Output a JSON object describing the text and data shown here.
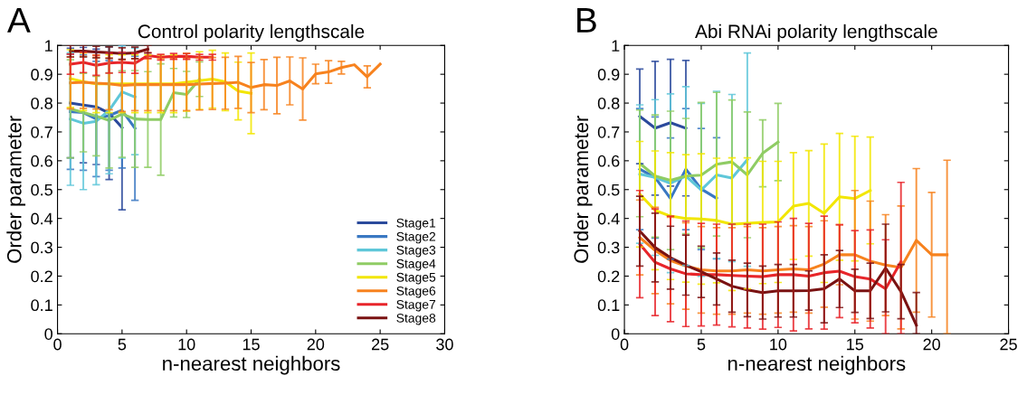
{
  "chart_data": [
    {
      "type": "line",
      "title": "Control polarity lengthscale",
      "xlabel": "n-nearest neighbors",
      "ylabel": "Order parameter",
      "annotations": [
        "A"
      ],
      "xlim": [
        0,
        30
      ],
      "xticks": [
        0,
        5,
        10,
        15,
        20,
        25,
        30
      ],
      "ylim": [
        0,
        1
      ],
      "yticks": [
        0,
        0.1,
        0.2,
        0.3,
        0.4,
        0.5,
        0.6,
        0.7,
        0.8,
        0.9,
        1
      ],
      "grid": false,
      "legend": "bottom right",
      "marker": "none",
      "line_style": "solid",
      "series": [
        {
          "name": "Stage1",
          "color": "#2b4a9c",
          "x": [
            1,
            2,
            3,
            4,
            5
          ],
          "values": [
            0.8,
            0.793,
            0.787,
            0.765,
            0.715
          ],
          "errors": [
            0.19,
            0.2,
            0.2,
            0.23,
            0.285
          ]
        },
        {
          "name": "Stage2",
          "color": "#3a78c2",
          "x": [
            1,
            2,
            3,
            4,
            5,
            6
          ],
          "values": [
            0.77,
            0.767,
            0.745,
            0.757,
            0.775,
            0.713
          ],
          "errors": [
            0.2,
            0.2,
            0.2,
            0.19,
            0.2,
            0.25
          ]
        },
        {
          "name": "Stage3",
          "color": "#5fc7d9",
          "x": [
            1,
            2,
            3,
            4,
            5,
            6
          ],
          "values": [
            0.745,
            0.73,
            0.737,
            0.775,
            0.839,
            0.821
          ],
          "errors": [
            0.23,
            0.23,
            0.22,
            0.22,
            [
              0.609,
              0.999
            ],
            [
              0.621,
              0.991
            ]
          ]
        },
        {
          "name": "Stage4",
          "color": "#8fcc64",
          "x": [
            1,
            2,
            3,
            4,
            5,
            6,
            7,
            8,
            9,
            10,
            11
          ],
          "values": [
            0.78,
            0.767,
            0.755,
            0.74,
            0.762,
            0.745,
            0.743,
            0.743,
            0.836,
            0.83,
            0.883
          ],
          "errors": [
            0.17,
            0.136,
            0.138,
            0.165,
            0.15,
            0.168,
            0.166,
            0.193,
            0.084,
            0.08,
            0.06
          ]
        },
        {
          "name": "Stage5",
          "color": "#f2e600",
          "x": [
            1,
            2,
            3,
            4,
            5,
            6,
            7,
            8,
            9,
            10,
            11,
            12,
            13,
            14,
            15
          ],
          "values": [
            0.885,
            0.874,
            0.867,
            0.867,
            0.867,
            0.867,
            0.867,
            0.867,
            0.867,
            0.872,
            0.878,
            0.883,
            0.874,
            0.842,
            0.834
          ],
          "errors": [
            0.1,
            0.1,
            0.1,
            0.1,
            0.1,
            0.1,
            0.1,
            0.1,
            0.1,
            0.1,
            0.1,
            0.1,
            0.1,
            0.1,
            0.14
          ]
        },
        {
          "name": "Stage6",
          "color": "#f7821e",
          "x": [
            1,
            2,
            3,
            4,
            5,
            6,
            7,
            8,
            9,
            10,
            11,
            12,
            13,
            14,
            15,
            16,
            17,
            18,
            19,
            20,
            21,
            22,
            23,
            24,
            25
          ],
          "values": [
            0.87,
            0.872,
            0.869,
            0.867,
            0.861,
            0.864,
            0.864,
            0.864,
            0.864,
            0.864,
            0.866,
            0.868,
            0.869,
            0.872,
            0.854,
            0.864,
            0.861,
            0.877,
            0.849,
            0.901,
            0.908,
            0.923,
            0.933,
            0.891,
            0.935
          ],
          "errors": [
            0.09,
            0.09,
            0.09,
            0.09,
            0.09,
            0.09,
            0.09,
            0.09,
            0.09,
            0.09,
            0.09,
            0.09,
            0.09,
            0.09,
            0.087,
            0.087,
            0.098,
            0.083,
            0.108,
            0.034,
            0.039,
            0.022,
            null,
            0.038,
            null
          ]
        },
        {
          "name": "Stage7",
          "color": "#e8252a",
          "x": [
            1,
            2,
            3,
            4,
            5,
            6,
            7,
            8,
            9,
            10,
            11,
            12
          ],
          "values": [
            0.935,
            0.941,
            0.931,
            0.939,
            0.941,
            0.938,
            0.965,
            0.959,
            0.962,
            0.962,
            0.959,
            0.959
          ],
          "errors": [
            0.035,
            0.035,
            0.035,
            0.035,
            0.035,
            0.035,
            0.01,
            0.01,
            0.01,
            0.01,
            0.01,
            0.01
          ]
        },
        {
          "name": "Stage8",
          "color": "#7a1212",
          "x": [
            1,
            2,
            3,
            4,
            5,
            6,
            7
          ],
          "values": [
            0.98,
            0.98,
            0.977,
            0.975,
            0.972,
            0.974,
            0.987
          ],
          "errors": [
            0.02,
            0.02,
            0.02,
            0.02,
            0.02,
            0.02,
            0.013
          ]
        }
      ]
    },
    {
      "type": "line",
      "title": "Abi RNAi polarity lengthscale",
      "xlabel": "n-nearest neighbors",
      "ylabel": "Order parameter",
      "annotations": [
        "B"
      ],
      "xlim": [
        0,
        25
      ],
      "xticks": [
        0,
        5,
        10,
        15,
        20,
        25
      ],
      "ylim": [
        0,
        1
      ],
      "yticks": [
        0,
        0.1,
        0.2,
        0.3,
        0.4,
        0.5,
        0.6,
        0.7,
        0.8,
        0.9,
        1
      ],
      "grid": false,
      "marker": "none",
      "line_style": "solid",
      "series": [
        {
          "color": "#2b4a9c",
          "x": [
            1,
            2,
            3,
            4
          ],
          "values": [
            0.754,
            0.713,
            0.732,
            0.713
          ],
          "errors": [
            0.164,
            0.232,
            0.22,
            0.235
          ]
        },
        {
          "color": "#3a78c2",
          "x": [
            1,
            2,
            3,
            4,
            5,
            6
          ],
          "values": [
            0.571,
            0.542,
            0.469,
            0.571,
            0.502,
            0.47
          ],
          "errors": [
            0.21,
            0.21,
            0.21,
            0.21,
            0.21,
            0.21
          ]
        },
        {
          "color": "#5fc7d9",
          "x": [
            1,
            2,
            3,
            4,
            5,
            6,
            7,
            8
          ],
          "values": [
            0.554,
            0.542,
            0.522,
            0.547,
            0.499,
            0.551,
            0.54,
            0.604
          ],
          "errors": [
            0.24,
            0.27,
            0.31,
            0.31,
            0.3,
            0.29,
            0.29,
            0.37
          ]
        },
        {
          "color": "#8fcc64",
          "x": [
            1,
            2,
            3,
            4,
            5,
            6,
            7,
            8,
            9,
            10
          ],
          "values": [
            0.591,
            0.547,
            0.532,
            0.547,
            0.55,
            0.588,
            0.596,
            0.551,
            0.626,
            0.665
          ],
          "errors": [
            0.185,
            0.212,
            0.24,
            0.2,
            0.252,
            0.249,
            0.215,
            0.218,
            0.116,
            0.134
          ]
        },
        {
          "color": "#f2e600",
          "x": [
            1,
            2,
            3,
            4,
            5,
            6,
            7,
            8,
            9,
            10,
            11,
            12,
            13,
            14,
            15,
            16
          ],
          "values": [
            0.484,
            0.428,
            0.408,
            0.4,
            0.398,
            0.393,
            0.38,
            0.383,
            0.386,
            0.388,
            0.443,
            0.452,
            0.418,
            0.475,
            0.469,
            0.497
          ],
          "errors": [
            0.183,
            0.206,
            0.22,
            0.221,
            0.226,
            0.216,
            0.23,
            0.227,
            0.212,
            0.21,
            0.185,
            0.183,
            0.24,
            0.22,
            0.216,
            0.185
          ]
        },
        {
          "color": "#f7821e",
          "x": [
            1,
            2,
            3,
            4,
            5,
            6,
            7,
            8,
            9,
            10,
            11,
            12,
            13,
            14,
            15,
            16,
            17,
            18,
            19,
            20,
            21
          ],
          "values": [
            0.334,
            0.289,
            0.254,
            0.235,
            0.222,
            0.218,
            0.218,
            0.222,
            0.218,
            0.222,
            0.225,
            0.222,
            0.242,
            0.274,
            0.274,
            0.252,
            0.238,
            0.23,
            0.324,
            0.274,
            0.274
          ],
          "errors": [
            0.13,
            0.15,
            0.15,
            0.15,
            0.15,
            0.15,
            0.15,
            0.15,
            0.15,
            0.15,
            0.15,
            0.15,
            0.15,
            0.104,
            0.223,
            0.208,
            0.175,
            0.213,
            0.249,
            0.216,
            [
              0,
              0.602
            ]
          ]
        },
        {
          "color": "#e8252a",
          "x": [
            1,
            2,
            3,
            4,
            5,
            6,
            7,
            8,
            9,
            10,
            11,
            12,
            13,
            14,
            15,
            16,
            17,
            18
          ],
          "values": [
            0.311,
            0.248,
            0.225,
            0.208,
            0.205,
            0.205,
            0.202,
            0.2,
            0.198,
            0.205,
            0.205,
            0.2,
            0.212,
            0.217,
            0.198,
            0.19,
            0.156,
            0.25
          ],
          "errors": [
            0.186,
            0.185,
            0.183,
            0.183,
            0.178,
            0.175,
            0.178,
            0.18,
            0.182,
            0.183,
            0.195,
            0.183,
            0.196,
            0.161,
            0.16,
            0.17,
            [
              0,
              0.326
            ],
            [
              0,
              0.525
            ]
          ]
        },
        {
          "color": "#7a1212",
          "x": [
            1,
            2,
            3,
            4,
            5,
            6,
            7,
            8,
            9,
            10,
            11,
            12,
            13,
            14,
            15,
            16,
            17,
            18,
            19
          ],
          "values": [
            0.356,
            0.299,
            0.264,
            0.238,
            0.215,
            0.19,
            0.165,
            0.152,
            0.143,
            0.149,
            0.149,
            0.15,
            0.156,
            0.19,
            0.149,
            0.149,
            0.228,
            0.146,
            0.03
          ],
          "errors": [
            0.121,
            0.119,
            0.109,
            0.104,
            0.089,
            0.09,
            0.09,
            0.093,
            0.092,
            0.091,
            0.091,
            0.068,
            0.118,
            0.099,
            0.075,
            0.096,
            0.152,
            0.094,
            [
              0,
              0.143
            ]
          ]
        }
      ]
    }
  ]
}
